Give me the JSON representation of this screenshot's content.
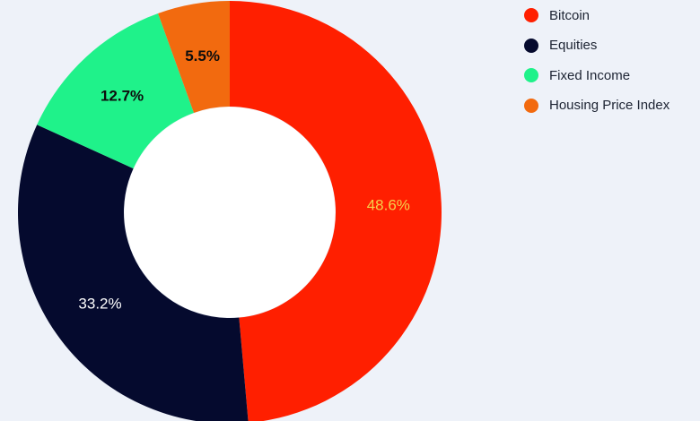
{
  "chart_data": {
    "type": "pie",
    "title": "",
    "categories": [
      "Bitcoin",
      "Equities",
      "Fixed Income",
      "Housing Price Index"
    ],
    "values": [
      48.6,
      33.2,
      12.7,
      5.5
    ],
    "labels": [
      "48.6%",
      "33.2%",
      "12.7%",
      "5.5%"
    ],
    "colors": [
      "#ff1f00",
      "#050a2e",
      "#1ff28a",
      "#f26a0f"
    ],
    "label_colors": [
      "#f5d04a",
      "#ffffff",
      "#0d0d0d",
      "#0d0d0d"
    ],
    "label_weights": [
      "normal",
      "normal",
      "bold",
      "bold"
    ],
    "donut": true,
    "legend_position": "top-right"
  }
}
